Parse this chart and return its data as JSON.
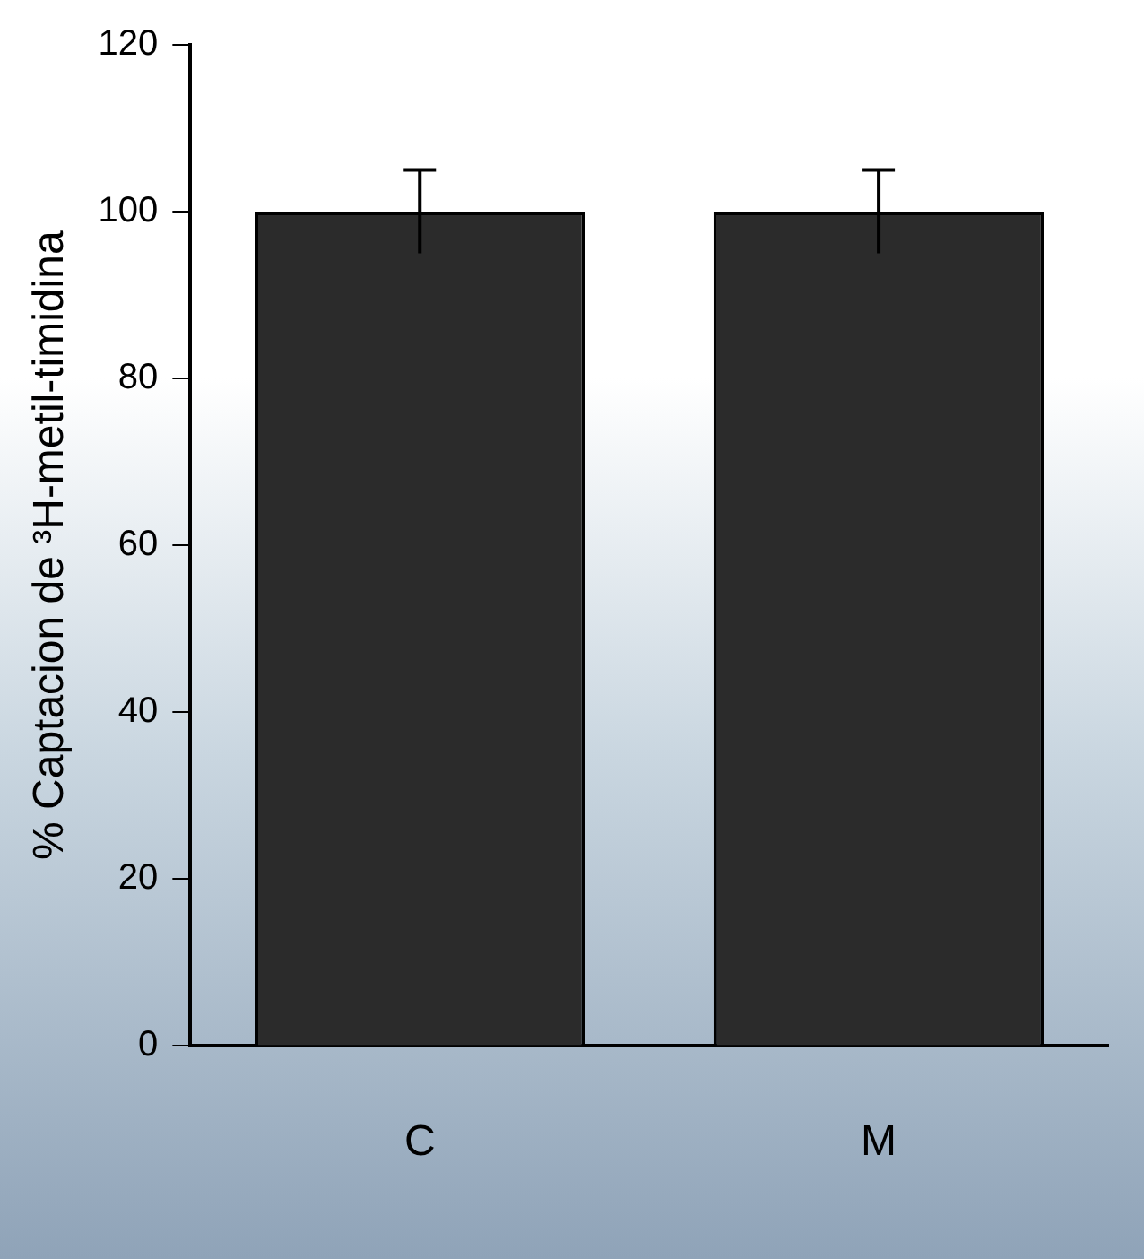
{
  "chart_data": {
    "type": "bar",
    "ylabel": "% Captacion de ³H-metil-timidina",
    "categories": [
      "C",
      "M"
    ],
    "values": [
      100,
      100
    ],
    "errors": [
      5,
      5
    ],
    "color": "#2b2b2b",
    "ylim": [
      0,
      120
    ],
    "yticks": [
      0,
      20,
      40,
      60,
      80,
      100,
      120
    ],
    "grid": false,
    "legend": false
  }
}
